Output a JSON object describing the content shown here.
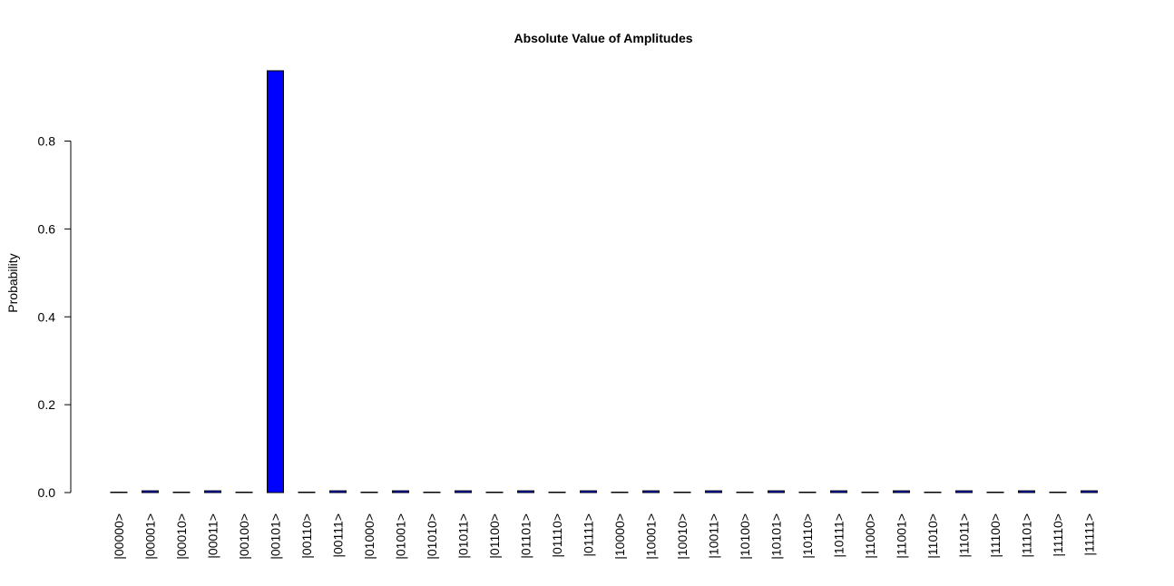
{
  "chart_data": {
    "type": "bar",
    "title": "Absolute Value of Amplitudes",
    "y_label": "Probability",
    "categories": [
      "|00000>",
      "|00001>",
      "|00010>",
      "|00011>",
      "|00100>",
      "|00101>",
      "|00110>",
      "|00111>",
      "|01000>",
      "|01001>",
      "|01010>",
      "|01011>",
      "|01100>",
      "|01101>",
      "|01110>",
      "|01111>",
      "|10000>",
      "|10001>",
      "|10010>",
      "|10011>",
      "|10100>",
      "|10101>",
      "|10110>",
      "|10111>",
      "|11000>",
      "|11001>",
      "|11010>",
      "|11011>",
      "|11100>",
      "|11101>",
      "|11110>",
      "|11111>"
    ],
    "values": [
      0.001,
      0.004,
      0.001,
      0.004,
      0.001,
      0.96,
      0.001,
      0.004,
      0.001,
      0.004,
      0.001,
      0.004,
      0.001,
      0.004,
      0.001,
      0.004,
      0.001,
      0.004,
      0.001,
      0.004,
      0.001,
      0.004,
      0.001,
      0.004,
      0.001,
      0.004,
      0.001,
      0.004,
      0.001,
      0.004,
      0.001,
      0.004
    ],
    "color": "#0000ff",
    "grid": false,
    "ylim": [
      0,
      0.96
    ],
    "yticks": [
      {
        "value": 0,
        "label": "0.0"
      },
      0.2,
      0.4,
      0.6,
      0.8
    ]
  }
}
